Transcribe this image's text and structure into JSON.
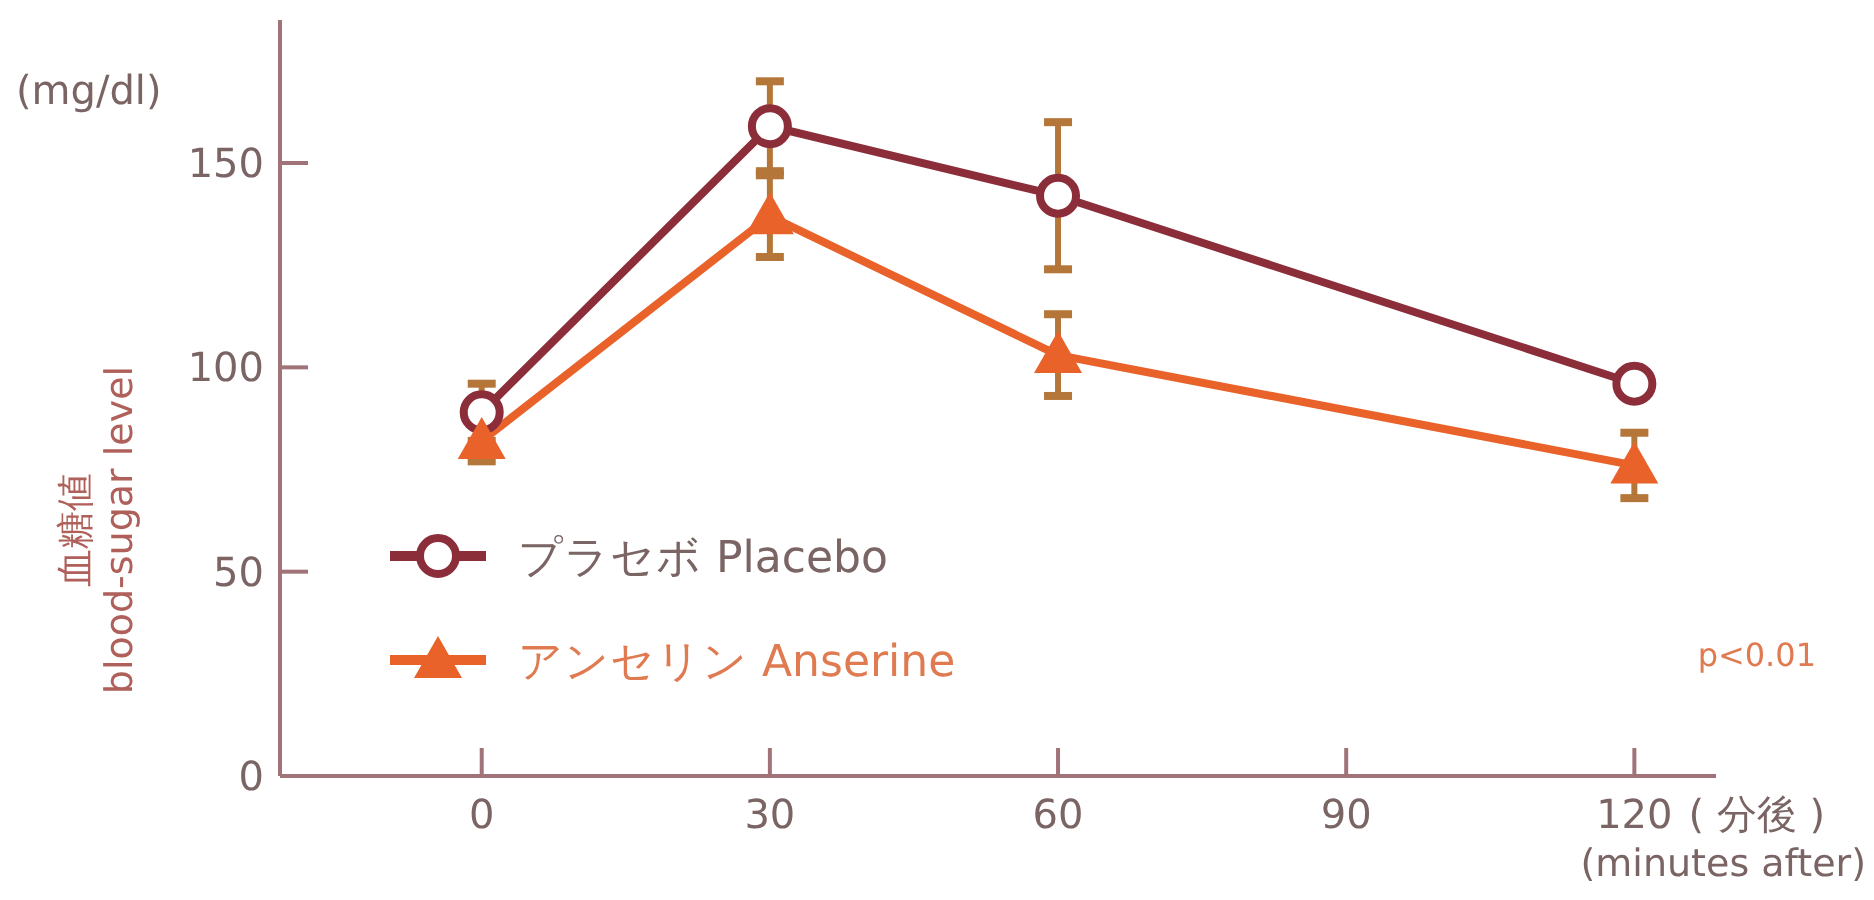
{
  "chart_data": {
    "type": "line",
    "ylabel": "血糖値\nblood-sugar level",
    "xlabel": "( 分後 )\n(minutes after)",
    "x": [
      0,
      30,
      60,
      120
    ],
    "xlim": [
      -21,
      128.5
    ],
    "xticks": [
      0,
      30,
      60,
      90,
      120
    ],
    "ylim": [
      0,
      185
    ],
    "yticks": [
      0,
      50,
      100,
      150
    ],
    "series": [
      {
        "name": "プラセボ Placebo",
        "color": "#8b2e3a",
        "marker": "circle",
        "values": [
          89,
          159,
          142,
          96
        ],
        "errors": [
          7,
          11,
          18,
          null
        ]
      },
      {
        "name": "アンセリン Anserine",
        "color": "#e8622a",
        "marker": "triangle",
        "values": [
          82,
          137,
          103,
          76
        ],
        "errors": [
          5,
          10,
          10,
          8
        ]
      }
    ],
    "legend": "bottom left",
    "grid": false,
    "annotations": [
      "(mg/dl)",
      "p<0.01"
    ]
  }
}
